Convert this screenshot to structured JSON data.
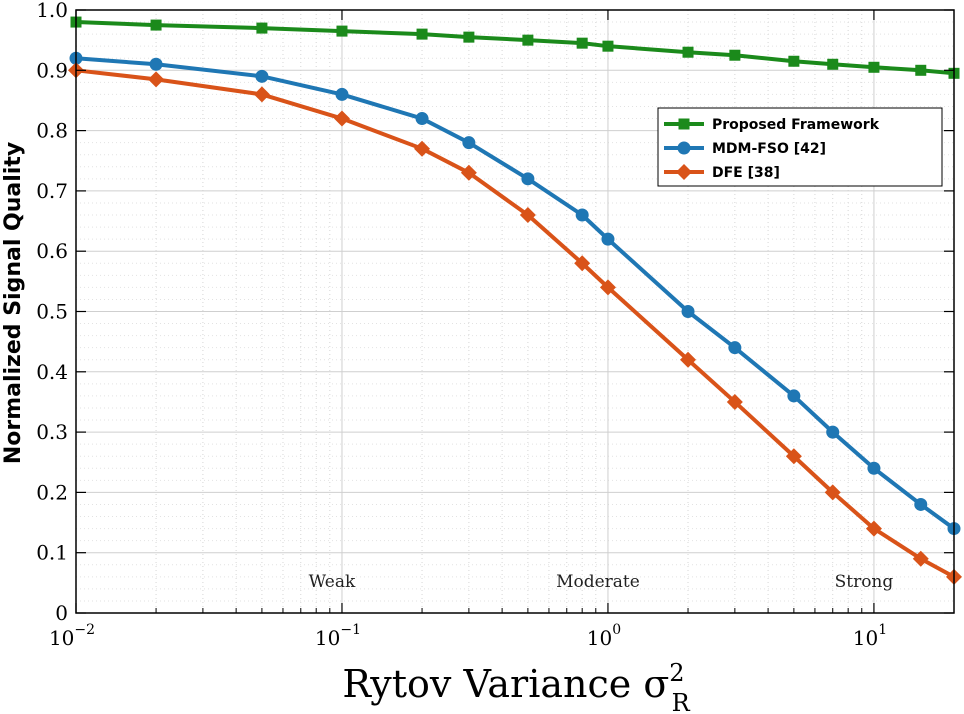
{
  "chart_data": {
    "type": "line",
    "xlabel": "Rytov Variance σ",
    "xlabel_sup": "2",
    "xlabel_sub": "R",
    "ylabel": "Normalized Signal Quality",
    "x_scale": "log",
    "xlim": [
      0.01,
      20
    ],
    "ylim": [
      0,
      1.0
    ],
    "grid": true,
    "minor_grid": true,
    "legend_position": "upper-right",
    "x_ticks": [
      {
        "value": 0.01,
        "base": "10",
        "exp": "−2"
      },
      {
        "value": 0.1,
        "base": "10",
        "exp": "−1"
      },
      {
        "value": 1,
        "base": "10",
        "exp": "0"
      },
      {
        "value": 10,
        "base": "10",
        "exp": "1"
      }
    ],
    "y_ticks": [
      {
        "value": 0,
        "label": "0"
      },
      {
        "value": 0.1,
        "label": "0.1"
      },
      {
        "value": 0.2,
        "label": "0.2"
      },
      {
        "value": 0.3,
        "label": "0.3"
      },
      {
        "value": 0.4,
        "label": "0.4"
      },
      {
        "value": 0.5,
        "label": "0.5"
      },
      {
        "value": 0.6,
        "label": "0.6"
      },
      {
        "value": 0.7,
        "label": "0.7"
      },
      {
        "value": 0.8,
        "label": "0.8"
      },
      {
        "value": 0.9,
        "label": "0.9"
      },
      {
        "value": 1.0,
        "label": "1.0"
      }
    ],
    "annotations": [
      {
        "text": "Weak",
        "x": 0.1
      },
      {
        "text": "Moderate",
        "x": 1
      },
      {
        "text": "Strong",
        "x": 10
      }
    ],
    "series": [
      {
        "name": "Proposed Framework",
        "color": "#1b8a1b",
        "marker": "square",
        "x": [
          0.01,
          0.02,
          0.05,
          0.1,
          0.2,
          0.3,
          0.5,
          0.8,
          1,
          2,
          3,
          5,
          7,
          10,
          15,
          20
        ],
        "y": [
          0.98,
          0.975,
          0.97,
          0.965,
          0.96,
          0.955,
          0.95,
          0.945,
          0.94,
          0.93,
          0.925,
          0.915,
          0.91,
          0.905,
          0.9,
          0.895
        ]
      },
      {
        "name": "MDM-FSO [42]",
        "color": "#1f77b4",
        "marker": "circle",
        "x": [
          0.01,
          0.02,
          0.05,
          0.1,
          0.2,
          0.3,
          0.5,
          0.8,
          1,
          2,
          3,
          5,
          7,
          10,
          15,
          20
        ],
        "y": [
          0.92,
          0.91,
          0.89,
          0.86,
          0.82,
          0.78,
          0.72,
          0.66,
          0.62,
          0.5,
          0.44,
          0.36,
          0.3,
          0.24,
          0.18,
          0.14
        ]
      },
      {
        "name": "DFE [38]",
        "color": "#d95319",
        "marker": "diamond",
        "x": [
          0.01,
          0.02,
          0.05,
          0.1,
          0.2,
          0.3,
          0.5,
          0.8,
          1,
          2,
          3,
          5,
          7,
          10,
          15,
          20
        ],
        "y": [
          0.9,
          0.885,
          0.86,
          0.82,
          0.77,
          0.73,
          0.66,
          0.58,
          0.54,
          0.42,
          0.35,
          0.26,
          0.2,
          0.14,
          0.09,
          0.06
        ]
      }
    ]
  }
}
